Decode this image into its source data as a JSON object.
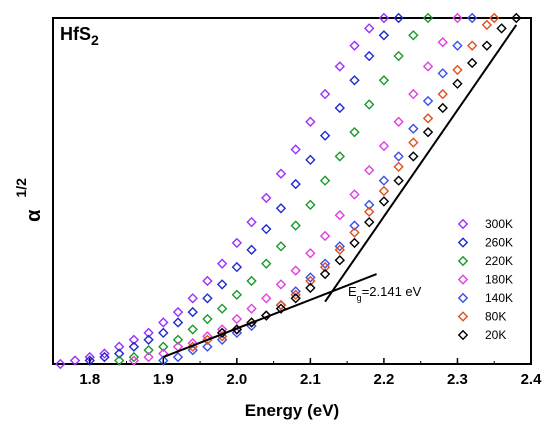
{
  "chart_data": {
    "type": "scatter",
    "title": "HfS2",
    "xlabel": "Energy (eV)",
    "ylabel": "α 1/2",
    "xlim": [
      1.75,
      2.4
    ],
    "xticks": [
      "1.8",
      "1.9",
      "2.0",
      "2.1",
      "2.2",
      "2.3",
      "2.4"
    ],
    "ylim": [
      0,
      1
    ],
    "yticks": [],
    "grid": false,
    "legend_position": "right",
    "annotation": "E g =2.141 eV",
    "bandgap_eV": 2.141,
    "series": [
      {
        "name": "300K",
        "color": "#9b30ff",
        "x": [
          1.76,
          1.78,
          1.8,
          1.82,
          1.84,
          1.86,
          1.88,
          1.9,
          1.92,
          1.94,
          1.96,
          1.98,
          2.0,
          2.02,
          2.04,
          2.06,
          2.08,
          2.1,
          2.12,
          2.14,
          2.16,
          2.18,
          2.2
        ],
        "y": [
          0.0,
          0.01,
          0.02,
          0.03,
          0.05,
          0.07,
          0.09,
          0.12,
          0.15,
          0.19,
          0.24,
          0.29,
          0.35,
          0.41,
          0.48,
          0.55,
          0.62,
          0.7,
          0.78,
          0.86,
          0.92,
          0.97,
          1.0
        ]
      },
      {
        "name": "260K",
        "color": "#1e2ad0",
        "x": [
          1.8,
          1.82,
          1.84,
          1.86,
          1.88,
          1.9,
          1.92,
          1.94,
          1.96,
          1.98,
          2.0,
          2.02,
          2.04,
          2.06,
          2.08,
          2.1,
          2.12,
          2.14,
          2.16,
          2.18,
          2.2,
          2.22
        ],
        "y": [
          0.01,
          0.02,
          0.03,
          0.05,
          0.07,
          0.09,
          0.12,
          0.15,
          0.19,
          0.23,
          0.28,
          0.33,
          0.39,
          0.45,
          0.52,
          0.59,
          0.66,
          0.74,
          0.82,
          0.89,
          0.95,
          1.0
        ]
      },
      {
        "name": "220K",
        "color": "#1a9a2a",
        "x": [
          1.84,
          1.86,
          1.88,
          1.9,
          1.92,
          1.94,
          1.96,
          1.98,
          2.0,
          2.02,
          2.04,
          2.06,
          2.08,
          2.1,
          2.12,
          2.14,
          2.16,
          2.18,
          2.2,
          2.22,
          2.24,
          2.26
        ],
        "y": [
          0.01,
          0.02,
          0.04,
          0.05,
          0.07,
          0.1,
          0.13,
          0.16,
          0.2,
          0.24,
          0.29,
          0.34,
          0.4,
          0.46,
          0.53,
          0.6,
          0.67,
          0.75,
          0.82,
          0.89,
          0.95,
          1.0
        ]
      },
      {
        "name": "180K",
        "color": "#e040e0",
        "x": [
          1.86,
          1.88,
          1.9,
          1.92,
          1.94,
          1.96,
          1.98,
          2.0,
          2.02,
          2.04,
          2.06,
          2.08,
          2.1,
          2.12,
          2.14,
          2.16,
          2.18,
          2.2,
          2.22,
          2.24,
          2.26,
          2.28,
          2.3
        ],
        "y": [
          0.01,
          0.02,
          0.03,
          0.05,
          0.06,
          0.08,
          0.1,
          0.13,
          0.16,
          0.19,
          0.23,
          0.27,
          0.32,
          0.37,
          0.43,
          0.49,
          0.56,
          0.63,
          0.7,
          0.78,
          0.86,
          0.93,
          1.0
        ]
      },
      {
        "name": "140K",
        "color": "#3a50e8",
        "x": [
          1.9,
          1.92,
          1.94,
          1.96,
          1.98,
          2.0,
          2.02,
          2.04,
          2.06,
          2.08,
          2.1,
          2.12,
          2.14,
          2.16,
          2.18,
          2.2,
          2.22,
          2.24,
          2.26,
          2.28,
          2.3,
          2.32
        ],
        "y": [
          0.01,
          0.02,
          0.04,
          0.05,
          0.07,
          0.09,
          0.11,
          0.14,
          0.17,
          0.21,
          0.25,
          0.29,
          0.34,
          0.4,
          0.46,
          0.53,
          0.6,
          0.68,
          0.76,
          0.84,
          0.92,
          1.0
        ]
      },
      {
        "name": "80K",
        "color": "#e05020",
        "x": [
          1.94,
          1.96,
          1.98,
          2.0,
          2.02,
          2.04,
          2.06,
          2.08,
          2.1,
          2.12,
          2.14,
          2.16,
          2.18,
          2.2,
          2.22,
          2.24,
          2.26,
          2.28,
          2.3,
          2.32,
          2.34,
          2.35
        ],
        "y": [
          0.05,
          0.07,
          0.08,
          0.1,
          0.12,
          0.14,
          0.17,
          0.2,
          0.24,
          0.28,
          0.33,
          0.38,
          0.44,
          0.5,
          0.57,
          0.64,
          0.71,
          0.78,
          0.85,
          0.92,
          0.98,
          1.0
        ]
      },
      {
        "name": "20K",
        "color": "#000000",
        "x": [
          1.98,
          2.0,
          2.02,
          2.04,
          2.06,
          2.08,
          2.1,
          2.12,
          2.14,
          2.16,
          2.18,
          2.2,
          2.22,
          2.24,
          2.26,
          2.28,
          2.3,
          2.32,
          2.34,
          2.36,
          2.38
        ],
        "y": [
          0.09,
          0.1,
          0.12,
          0.14,
          0.16,
          0.19,
          0.22,
          0.26,
          0.3,
          0.35,
          0.41,
          0.47,
          0.53,
          0.6,
          0.67,
          0.74,
          0.81,
          0.87,
          0.92,
          0.97,
          1.0
        ]
      }
    ],
    "fit_lines": [
      {
        "x": [
          1.9,
          2.19
        ],
        "y": [
          0.02,
          0.26
        ]
      },
      {
        "x": [
          2.12,
          2.38
        ],
        "y": [
          0.18,
          0.98
        ]
      }
    ]
  }
}
